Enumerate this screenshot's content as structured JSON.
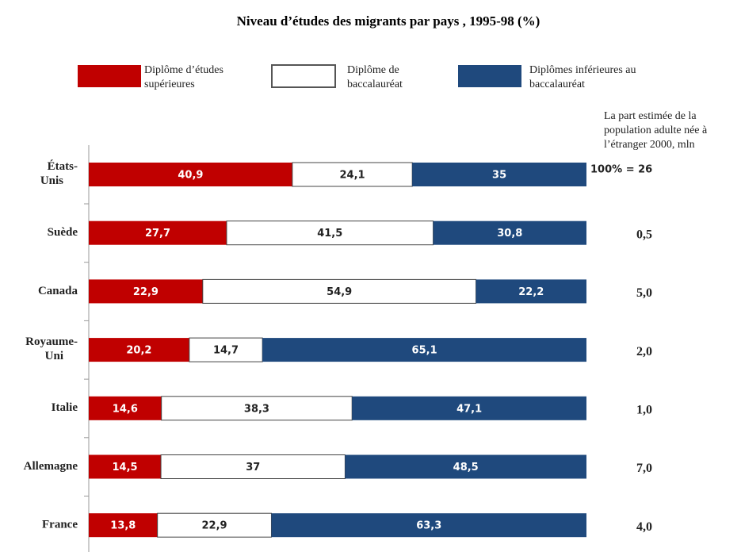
{
  "chart_data": {
    "type": "stacked_bar_horizontal",
    "title": "Niveau d’études des migrants par pays , 1995-98 (%)",
    "categories": [
      "États-Unis",
      "Suède",
      "Canada",
      "Royaume-Uni",
      "Italie",
      "Allemagne",
      "France"
    ],
    "series": [
      {
        "name": "Diplôme d’études supérieures",
        "color": "#c00000",
        "values": [
          40.9,
          27.7,
          22.9,
          20.2,
          14.6,
          14.5,
          13.8
        ],
        "value_labels": [
          "40,9",
          "27,7",
          "22,9",
          "20,2",
          "14,6",
          "14,5",
          "13,8"
        ]
      },
      {
        "name": "Diplôme de baccalauréat",
        "color": "#ffffff",
        "values": [
          24.1,
          41.5,
          54.9,
          14.7,
          38.3,
          37,
          22.9
        ],
        "value_labels": [
          "24,1",
          "41,5",
          "54,9",
          "14,7",
          "38,3",
          "37",
          "22,9"
        ]
      },
      {
        "name": "Diplômes inférieures au baccalauréat",
        "color": "#1f497d",
        "values": [
          35,
          30.8,
          22.2,
          65.1,
          47.1,
          48.5,
          63.3
        ],
        "value_labels": [
          "35",
          "30,8",
          "22,2",
          "65,1",
          "47,1",
          "48,5",
          "63,3"
        ]
      }
    ],
    "xlim": [
      0,
      100
    ],
    "side_title": "La part estimée de la population adulte née à l’étranger 2000, mln",
    "side_labels": [
      "100% = 26",
      "0,5",
      "5,0",
      "2,0",
      "1,0",
      "7,0",
      "4,0"
    ]
  }
}
